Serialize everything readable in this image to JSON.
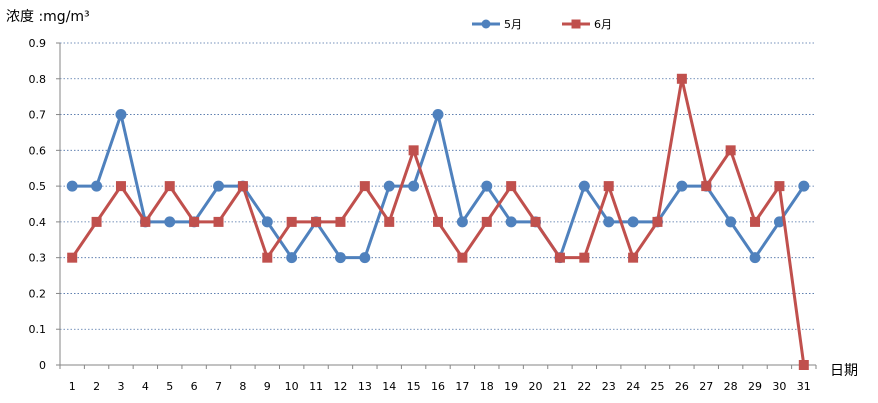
{
  "chart_data": {
    "type": "line",
    "ylabel": "浓度 :mg/m³",
    "xlabel": "日期",
    "ylim": [
      0,
      0.9
    ],
    "yticks": [
      "0",
      "0.1",
      "0.2",
      "0.3",
      "0.4",
      "0.5",
      "0.6",
      "0.7",
      "0.8",
      "0.9"
    ],
    "categories": [
      "1",
      "2",
      "3",
      "4",
      "5",
      "6",
      "7",
      "8",
      "9",
      "10",
      "11",
      "12",
      "13",
      "14",
      "15",
      "16",
      "17",
      "18",
      "19",
      "20",
      "21",
      "22",
      "23",
      "24",
      "25",
      "26",
      "27",
      "28",
      "29",
      "30",
      "31"
    ],
    "grid": true,
    "legend_position": "top",
    "series": [
      {
        "name": "5月",
        "color": "#4F81BD",
        "marker": "circle",
        "values": [
          0.5,
          0.5,
          0.7,
          0.4,
          0.4,
          0.4,
          0.5,
          0.5,
          0.4,
          0.3,
          0.4,
          0.3,
          0.3,
          0.5,
          0.5,
          0.7,
          0.4,
          0.5,
          0.4,
          0.4,
          0.3,
          0.5,
          0.4,
          0.4,
          0.4,
          0.5,
          0.5,
          0.4,
          0.3,
          0.4,
          0.5
        ]
      },
      {
        "name": "6月",
        "color": "#C0504D",
        "marker": "square",
        "values": [
          0.3,
          0.4,
          0.5,
          0.4,
          0.5,
          0.4,
          0.4,
          0.5,
          0.3,
          0.4,
          0.4,
          0.4,
          0.5,
          0.4,
          0.6,
          0.4,
          0.3,
          0.4,
          0.5,
          0.4,
          0.3,
          0.3,
          0.5,
          0.3,
          0.4,
          0.8,
          0.5,
          0.6,
          0.4,
          0.5,
          0.0
        ]
      }
    ]
  }
}
